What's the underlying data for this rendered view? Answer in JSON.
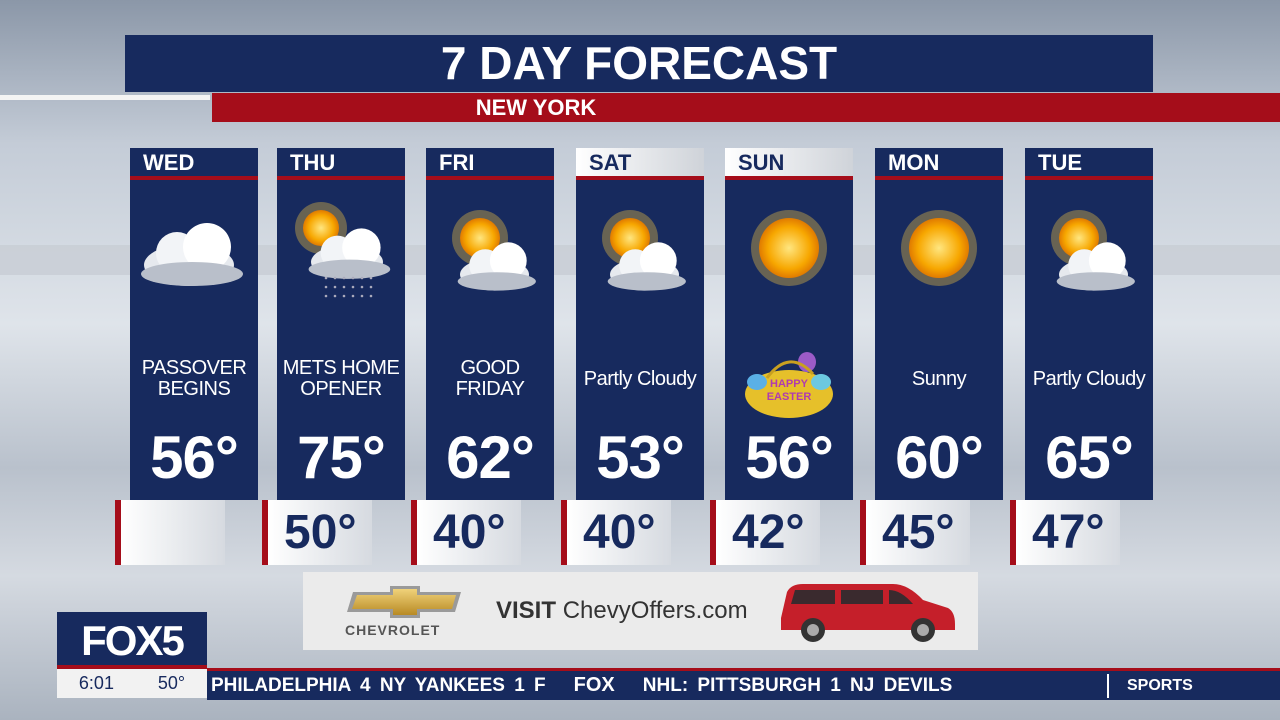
{
  "title": "7 DAY FORECAST",
  "location": "NEW YORK",
  "days": [
    {
      "day": "WED",
      "icon": "cloudy-icon",
      "desc": "PASSOVER BEGINS",
      "high": "56°",
      "low": ""
    },
    {
      "day": "THU",
      "icon": "sun-rain-cloud-icon",
      "desc": "METS HOME OPENER",
      "high": "75°",
      "low": "50°"
    },
    {
      "day": "FRI",
      "icon": "partly-cloudy-icon",
      "desc": "GOOD FRIDAY",
      "high": "62°",
      "low": "40°"
    },
    {
      "day": "SAT",
      "icon": "partly-cloudy-icon",
      "desc": "Partly Cloudy",
      "high": "53°",
      "low": "40°"
    },
    {
      "day": "SUN",
      "icon": "sunny-icon",
      "desc": "",
      "badge": "HAPPY EASTER",
      "high": "56°",
      "low": "42°"
    },
    {
      "day": "MON",
      "icon": "sunny-icon",
      "desc": "Sunny",
      "high": "60°",
      "low": "45°"
    },
    {
      "day": "TUE",
      "icon": "partly-cloudy-icon",
      "desc": "Partly Cloudy",
      "high": "65°",
      "low": "47°"
    }
  ],
  "ad": {
    "brand": "CHEVROLET",
    "visit": "VISIT",
    "site": "ChevyOffers.com"
  },
  "station": {
    "logo": "FOX5",
    "time": "6:01",
    "temp": "50°"
  },
  "ticker": {
    "left": "PHILADELPHIA  4  NY YANKEES  1  F",
    "fox": "FOX",
    "right": "NHL:  PITTSBURGH  1  NJ DEVILS",
    "section": "SPORTS"
  },
  "colors": {
    "navy": "#172a5e",
    "red": "#a50d1a"
  }
}
